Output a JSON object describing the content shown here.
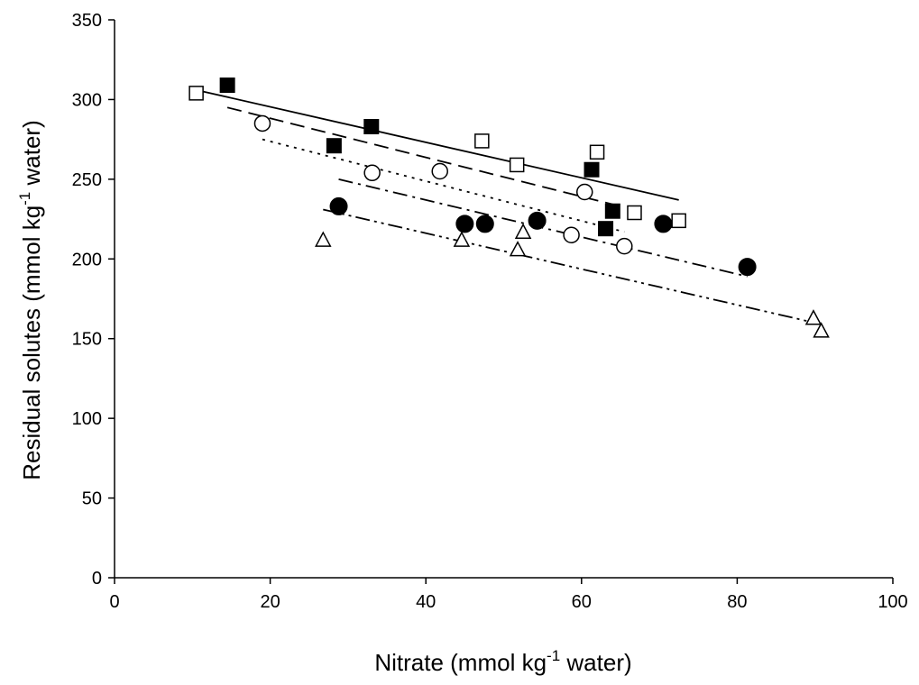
{
  "chart_data": {
    "type": "scatter",
    "xlabel": {
      "prefix": "Nitrate  (mmol kg",
      "sup": "-1",
      "suffix": " water)"
    },
    "ylabel": {
      "prefix": "Residual solutes  (mmol kg",
      "sup": "-1",
      "suffix": " water)"
    },
    "xlim": [
      0,
      100
    ],
    "ylim": [
      0,
      350
    ],
    "xticks": [
      0,
      20,
      40,
      60,
      80,
      100
    ],
    "yticks": [
      0,
      50,
      100,
      150,
      200,
      250,
      300,
      350
    ],
    "grid": false,
    "legend": "none",
    "series": [
      {
        "marker": "square-open",
        "line": "solid",
        "points": [
          [
            10.5,
            304
          ],
          [
            47.2,
            274
          ],
          [
            51.7,
            259
          ],
          [
            62.0,
            267
          ],
          [
            66.8,
            229
          ],
          [
            72.5,
            224
          ]
        ],
        "fit": [
          [
            10.5,
            306
          ],
          [
            72.5,
            237
          ]
        ]
      },
      {
        "marker": "square-filled",
        "line": "dashed",
        "points": [
          [
            14.5,
            309
          ],
          [
            28.2,
            271
          ],
          [
            33.0,
            283
          ],
          [
            61.3,
            256
          ],
          [
            63.1,
            219
          ],
          [
            64.0,
            230
          ]
        ],
        "fit": [
          [
            14.5,
            295
          ],
          [
            65.0,
            233
          ]
        ]
      },
      {
        "marker": "circle-open",
        "line": "dotted",
        "points": [
          [
            19.0,
            285
          ],
          [
            33.1,
            254
          ],
          [
            41.8,
            255
          ],
          [
            60.4,
            242
          ],
          [
            58.7,
            215
          ],
          [
            65.5,
            208
          ]
        ],
        "fit": [
          [
            19.0,
            275
          ],
          [
            65.5,
            217
          ]
        ]
      },
      {
        "marker": "circle-filled",
        "line": "dash-dot",
        "points": [
          [
            28.8,
            233
          ],
          [
            45.0,
            222
          ],
          [
            47.6,
            222
          ],
          [
            54.3,
            224
          ],
          [
            70.5,
            222
          ],
          [
            81.3,
            195
          ]
        ],
        "fit": [
          [
            28.8,
            250
          ],
          [
            81.3,
            189
          ]
        ]
      },
      {
        "marker": "triangle-open",
        "line": "dash-dot-dot",
        "points": [
          [
            26.8,
            212
          ],
          [
            44.6,
            212
          ],
          [
            51.8,
            206
          ],
          [
            52.5,
            217
          ],
          [
            89.8,
            163
          ],
          [
            90.8,
            155
          ]
        ],
        "fit": [
          [
            26.8,
            231
          ],
          [
            90.8,
            159
          ]
        ]
      }
    ]
  }
}
